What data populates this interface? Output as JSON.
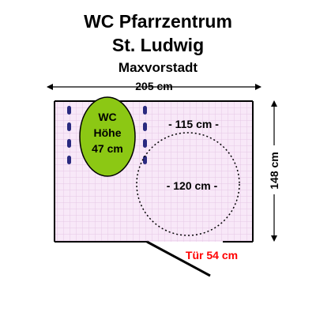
{
  "title": [
    "WC Pfarrzentrum",
    "St. Ludwig"
  ],
  "subtitle": "Maxvorstadt",
  "dimensions": {
    "width_label": "205 cm",
    "depth_label": "148 cm",
    "free_width_label": "- 115 cm -",
    "free_circle_label": "- 120 cm -",
    "door_label": "Tür 54 cm"
  },
  "wc": {
    "label_line1": "WC",
    "label_line2": "Höhe",
    "label_line3": "47 cm"
  },
  "colors": {
    "wall": "#000000",
    "floor_fill": "#f8e8f8",
    "floor_grid": "#e6c8e6",
    "wc_fill": "#8cc814",
    "grab_bar": "#2a2a80",
    "door_label": "#ff0000",
    "circle": "#000000"
  },
  "icons": {
    "wc": "toilet-ellipse-icon",
    "grab_bar": "grab-bar-icon",
    "turning_circle": "turning-circle-icon",
    "door": "door-swing-icon"
  }
}
